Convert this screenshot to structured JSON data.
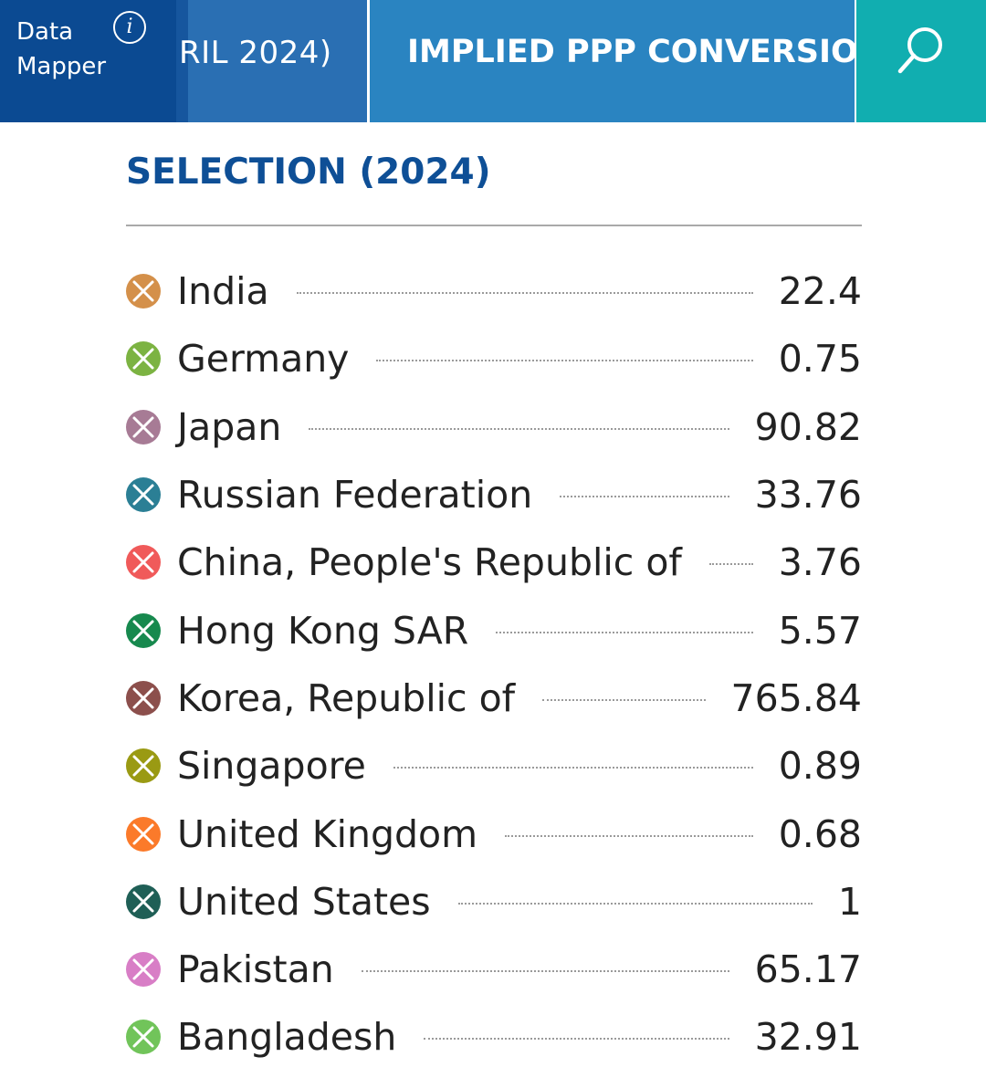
{
  "header": {
    "brand": {
      "line1": "Data",
      "line2": "Mapper"
    },
    "info_glyph": "i",
    "tabs": [
      {
        "label": "RIL 2024)",
        "active": false
      },
      {
        "label": "IMPLIED PPP CONVERSION RATE",
        "active": true
      }
    ],
    "search_icon": "search-icon",
    "colors": {
      "brand_bg": "#0b4a92",
      "tab_bg": "#2a6fb3",
      "active_tab_bg": "#2a84c1",
      "search_bg": "#11aeb0"
    }
  },
  "selection": {
    "title": "SELECTION (2024)",
    "remove_icon": "remove-x-icon",
    "items": [
      {
        "country": "India",
        "value": "22.4",
        "color": "#d4904a"
      },
      {
        "country": "Germany",
        "value": "0.75",
        "color": "#7cb342"
      },
      {
        "country": "Japan",
        "value": "90.82",
        "color": "#a77b95"
      },
      {
        "country": "Russian Federation",
        "value": "33.76",
        "color": "#2b7f95"
      },
      {
        "country": "China, People's Republic of",
        "value": "3.76",
        "color": "#f05a5a"
      },
      {
        "country": "Hong Kong SAR",
        "value": "5.57",
        "color": "#17894e"
      },
      {
        "country": "Korea, Republic of",
        "value": "765.84",
        "color": "#8c4f4c"
      },
      {
        "country": "Singapore",
        "value": "0.89",
        "color": "#9a9a13"
      },
      {
        "country": "United Kingdom",
        "value": "0.68",
        "color": "#fb7a2a"
      },
      {
        "country": "United States",
        "value": "1",
        "color": "#1f5f56"
      },
      {
        "country": "Pakistan",
        "value": "65.17",
        "color": "#d87ec6"
      },
      {
        "country": "Bangladesh",
        "value": "32.91",
        "color": "#71c45a"
      }
    ]
  }
}
